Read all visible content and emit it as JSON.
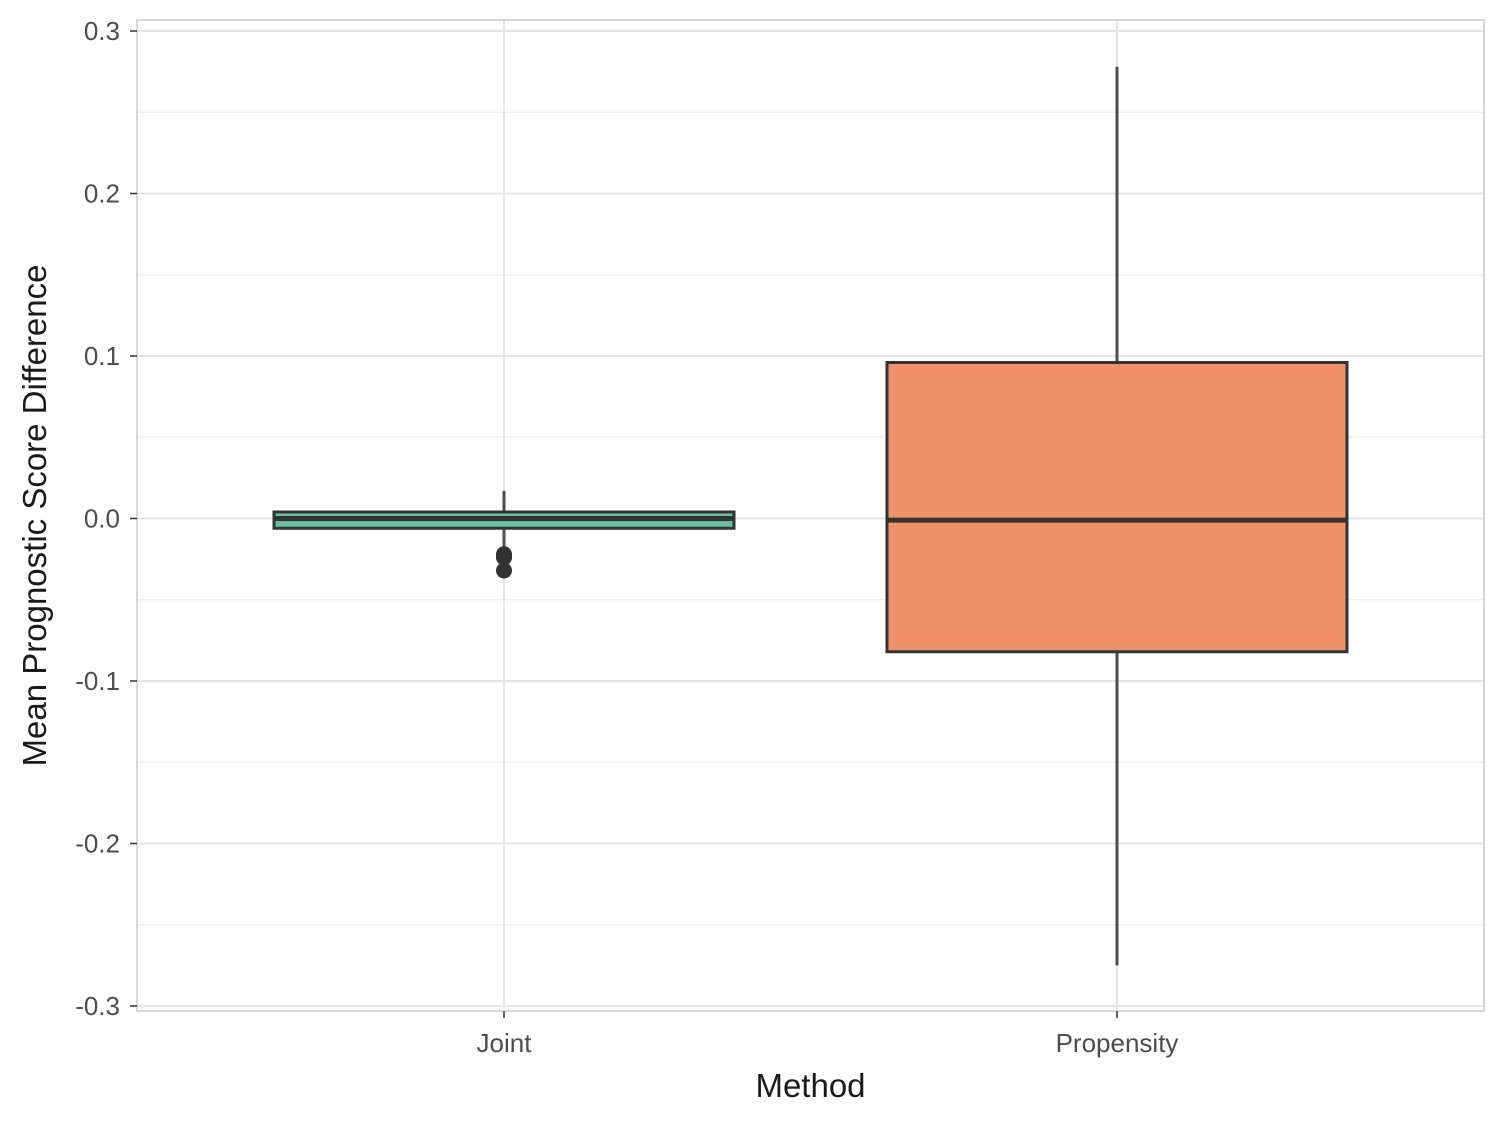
{
  "chart_data": {
    "type": "boxplot",
    "title": "",
    "xlabel": "Method",
    "ylabel": "Mean Prognostic Score Difference",
    "ylim": [
      -0.3,
      0.3
    ],
    "yticks": [
      -0.3,
      -0.2,
      -0.1,
      0.0,
      0.1,
      0.2,
      0.3
    ],
    "ytick_labels": [
      "-0.3",
      "-0.2",
      "-0.1",
      "0.0",
      "0.1",
      "0.2",
      "0.3"
    ],
    "categories": [
      "Joint",
      "Propensity"
    ],
    "grid": true,
    "legend": "none",
    "boxes": [
      {
        "category": "Joint",
        "whisker_low": -0.02,
        "q1": -0.006,
        "median": 0.0,
        "q3": 0.004,
        "whisker_high": 0.017,
        "outliers": [
          -0.022,
          -0.024,
          -0.032
        ],
        "color": "#66c2a5"
      },
      {
        "category": "Propensity",
        "whisker_low": -0.275,
        "q1": -0.082,
        "median": -0.001,
        "q3": 0.096,
        "whisker_high": 0.278,
        "outliers": [],
        "color": "#ef926c"
      }
    ]
  },
  "colors": {
    "panel_border": "#cccccc",
    "grid_major": "#e5e5e5",
    "grid_minor": "#f2f2f2",
    "box_stroke": "#333333",
    "whisker": "#4d4d4d"
  }
}
